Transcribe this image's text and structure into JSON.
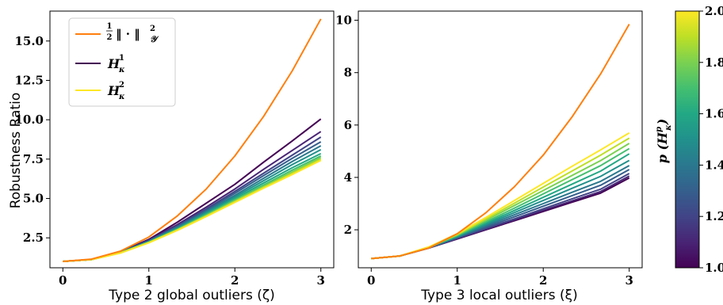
{
  "chart_data": [
    {
      "type": "line",
      "title": "",
      "xlabel": "Type 2 global outliers (ζ)",
      "ylabel": "Robustness Ratio",
      "xlim": [
        -0.15,
        3.15
      ],
      "ylim": [
        0.6,
        16.9
      ],
      "xticks": [
        "0",
        "1",
        "2",
        "3"
      ],
      "yticks": [
        "2.5",
        "5.0",
        "7.5",
        "10.0",
        "12.5",
        "15.0"
      ],
      "legend": {
        "placement": "top-left",
        "entries": [
          {
            "label": "½‖·‖²𝒴",
            "color": "#ff7f0e"
          },
          {
            "label": "H¹κ",
            "color": "#440154"
          },
          {
            "label": "H²κ",
            "color": "#fde725"
          }
        ]
      },
      "x": [
        0,
        0.333,
        0.667,
        1.0,
        1.333,
        1.667,
        2.0,
        2.333,
        2.667,
        3.0
      ],
      "series": [
        {
          "name": "½‖·‖²𝒴",
          "color": "#ff7f0e",
          "values": [
            1.0,
            1.15,
            1.65,
            2.55,
            3.9,
            5.6,
            7.7,
            10.2,
            13.1,
            16.4
          ]
        },
        {
          "p": 1.0,
          "values": [
            1.0,
            1.12,
            1.6,
            2.4,
            3.5,
            4.7,
            5.9,
            7.3,
            8.65,
            10.05
          ]
        },
        {
          "p": 1.1,
          "values": [
            1.0,
            1.12,
            1.58,
            2.35,
            3.35,
            4.45,
            5.6,
            6.85,
            8.05,
            9.25
          ]
        },
        {
          "p": 1.2,
          "values": [
            1.0,
            1.12,
            1.57,
            2.32,
            3.27,
            4.33,
            5.45,
            6.6,
            7.75,
            8.9
          ]
        },
        {
          "p": 1.3,
          "values": [
            1.0,
            1.12,
            1.57,
            2.3,
            3.22,
            4.25,
            5.33,
            6.45,
            7.55,
            8.6
          ]
        },
        {
          "p": 1.4,
          "values": [
            1.0,
            1.12,
            1.56,
            2.28,
            3.17,
            4.17,
            5.2,
            6.28,
            7.35,
            8.35
          ]
        },
        {
          "p": 1.5,
          "values": [
            1.0,
            1.12,
            1.56,
            2.26,
            3.12,
            4.1,
            5.1,
            6.13,
            7.15,
            8.1
          ]
        },
        {
          "p": 1.6,
          "values": [
            1.0,
            1.12,
            1.55,
            2.24,
            3.08,
            4.03,
            5.0,
            5.98,
            6.95,
            7.85
          ]
        },
        {
          "p": 1.7,
          "values": [
            1.0,
            1.12,
            1.55,
            2.22,
            3.05,
            3.97,
            4.92,
            5.85,
            6.8,
            7.7
          ]
        },
        {
          "p": 1.8,
          "values": [
            1.0,
            1.12,
            1.54,
            2.21,
            3.02,
            3.92,
            4.85,
            5.77,
            6.68,
            7.6
          ]
        },
        {
          "p": 1.9,
          "values": [
            1.0,
            1.12,
            1.54,
            2.2,
            3.0,
            3.88,
            4.8,
            5.7,
            6.6,
            7.5
          ]
        },
        {
          "p": 2.0,
          "values": [
            1.0,
            1.12,
            1.53,
            2.19,
            2.98,
            3.85,
            4.75,
            5.65,
            6.52,
            7.42
          ]
        }
      ]
    },
    {
      "type": "line",
      "title": "",
      "xlabel": "Type 3 local outliers (ξ)",
      "ylabel": "",
      "xlim": [
        -0.15,
        3.15
      ],
      "ylim": [
        0.55,
        10.35
      ],
      "xticks": [
        "0",
        "1",
        "2",
        "3"
      ],
      "yticks": [
        "2",
        "4",
        "6",
        "8",
        "10"
      ],
      "x": [
        0,
        0.333,
        0.667,
        1.0,
        1.333,
        1.667,
        2.0,
        2.333,
        2.667,
        3.0
      ],
      "series": [
        {
          "name": "½‖·‖²𝒴",
          "color": "#ff7f0e",
          "values": [
            0.9,
            1.0,
            1.3,
            1.85,
            2.65,
            3.65,
            4.85,
            6.3,
            7.95,
            9.85
          ]
        },
        {
          "p": 1.0,
          "values": [
            0.9,
            1.0,
            1.3,
            1.65,
            2.0,
            2.35,
            2.7,
            3.05,
            3.4,
            3.98
          ]
        },
        {
          "p": 1.1,
          "values": [
            0.9,
            1.0,
            1.3,
            1.66,
            2.02,
            2.38,
            2.74,
            3.1,
            3.46,
            4.05
          ]
        },
        {
          "p": 1.2,
          "values": [
            0.9,
            1.0,
            1.3,
            1.68,
            2.05,
            2.42,
            2.8,
            3.18,
            3.55,
            4.15
          ]
        },
        {
          "p": 1.3,
          "values": [
            0.9,
            1.0,
            1.31,
            1.7,
            2.1,
            2.5,
            2.9,
            3.3,
            3.7,
            4.3
          ]
        },
        {
          "p": 1.4,
          "values": [
            0.9,
            1.0,
            1.31,
            1.72,
            2.15,
            2.58,
            3.0,
            3.43,
            3.85,
            4.45
          ]
        },
        {
          "p": 1.5,
          "values": [
            0.9,
            1.0,
            1.32,
            1.74,
            2.2,
            2.66,
            3.12,
            3.58,
            4.04,
            4.65
          ]
        },
        {
          "p": 1.6,
          "values": [
            0.9,
            1.0,
            1.32,
            1.76,
            2.25,
            2.74,
            3.24,
            3.74,
            4.24,
            4.9
          ]
        },
        {
          "p": 1.7,
          "values": [
            0.9,
            1.0,
            1.33,
            1.78,
            2.3,
            2.83,
            3.37,
            3.91,
            4.45,
            5.1
          ]
        },
        {
          "p": 1.8,
          "values": [
            0.9,
            1.0,
            1.33,
            1.8,
            2.36,
            2.93,
            3.5,
            4.07,
            4.64,
            5.3
          ]
        },
        {
          "p": 1.9,
          "values": [
            0.9,
            1.0,
            1.34,
            1.82,
            2.41,
            3.02,
            3.63,
            4.24,
            4.85,
            5.5
          ]
        },
        {
          "p": 2.0,
          "values": [
            0.9,
            1.0,
            1.34,
            1.85,
            2.47,
            3.12,
            3.77,
            4.42,
            5.05,
            5.7
          ]
        }
      ]
    }
  ],
  "colorbar": {
    "label": "p (Hᵖκ)",
    "range": [
      1.0,
      2.0
    ],
    "ticks": [
      "1.0",
      "1.2",
      "1.4",
      "1.6",
      "1.8",
      "2.0"
    ],
    "tick_values": [
      1.0,
      1.2,
      1.4,
      1.6,
      1.8,
      2.0
    ],
    "colormap": "viridis"
  }
}
